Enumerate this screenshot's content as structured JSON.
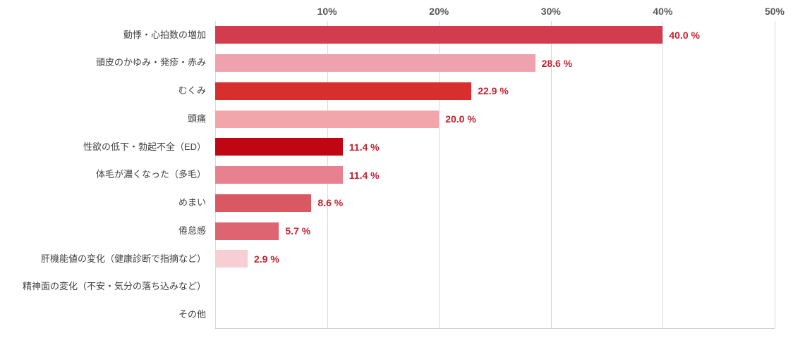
{
  "chart_data": {
    "type": "bar",
    "orientation": "horizontal",
    "title": "",
    "xlabel": "",
    "ylabel": "",
    "xlim": [
      0,
      50
    ],
    "grid": true,
    "x_ticks": [
      {
        "value": 10,
        "label": "10%"
      },
      {
        "value": 20,
        "label": "20%"
      },
      {
        "value": 30,
        "label": "30%"
      },
      {
        "value": 40,
        "label": "40%"
      },
      {
        "value": 50,
        "label": "50%"
      }
    ],
    "rows": [
      {
        "label": "動悸・心拍数の増加",
        "value": 40.0,
        "value_label": "40.0 %",
        "color": "#d23c4e"
      },
      {
        "label": "頭皮のかゆみ・発疹・赤み",
        "value": 28.6,
        "value_label": "28.6 %",
        "color": "#eda2ae"
      },
      {
        "label": "むくみ",
        "value": 22.9,
        "value_label": "22.9 %",
        "color": "#d62f2d"
      },
      {
        "label": "頭痛",
        "value": 20.0,
        "value_label": "20.0 %",
        "color": "#f3a5ac"
      },
      {
        "label": "性欲の低下・勃起不全（ED）",
        "value": 11.4,
        "value_label": "11.4 %",
        "color": "#c10613"
      },
      {
        "label": "体毛が濃くなった（多毛）",
        "value": 11.4,
        "value_label": "11.4 %",
        "color": "#e8818f"
      },
      {
        "label": "めまい",
        "value": 8.6,
        "value_label": "8.6 %",
        "color": "#d95862"
      },
      {
        "label": "倦怠感",
        "value": 5.7,
        "value_label": "5.7 %",
        "color": "#dd6470"
      },
      {
        "label": "肝機能値の変化（健康診断で指摘など）",
        "value": 2.9,
        "value_label": "2.9 %",
        "color": "#f6ced4"
      },
      {
        "label": "精神面の変化（不安・気分の落ち込みなど）",
        "value": 0,
        "value_label": "",
        "color": "#ffffff"
      },
      {
        "label": "その他",
        "value": 0,
        "value_label": "",
        "color": "#ffffff"
      }
    ],
    "colors": {
      "grid": "#d9d9d9",
      "axis_line": "#c9c9c9",
      "tick_label": "#595959",
      "category_label": "#404040",
      "value_label": "#c7222f"
    },
    "legend": null
  }
}
